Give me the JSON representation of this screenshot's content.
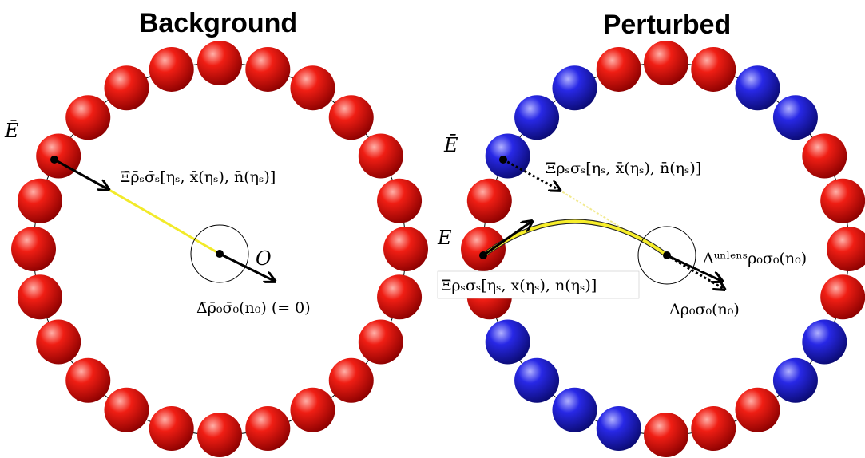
{
  "panels": [
    {
      "title": "Background",
      "labels": {
        "source": "Ē",
        "geodesic": "Ξ̄ρ̄ₛσ̄ₛ[ηₛ, x̄(ηₛ), n̄(ηₛ)]",
        "observer": "O",
        "direction": "Δ̄ρ̄₀σ̄₀(n₀)  (= 0)"
      }
    },
    {
      "title": "Perturbed",
      "labels": {
        "source_bg": "Ē",
        "geodesic_bg": "Ξρₛσₛ[ηₛ, x̄(ηₛ), n̄(ηₛ)]",
        "source": "E",
        "geodesic": "Ξρₛσₛ[ηₛ, x(ηₛ), n(ηₛ)]",
        "direction_unlens": "Δᵘⁿˡᵉⁿˢρ₀σ₀(n₀)",
        "direction": "Δρ₀σ₀(n₀)"
      }
    }
  ]
}
